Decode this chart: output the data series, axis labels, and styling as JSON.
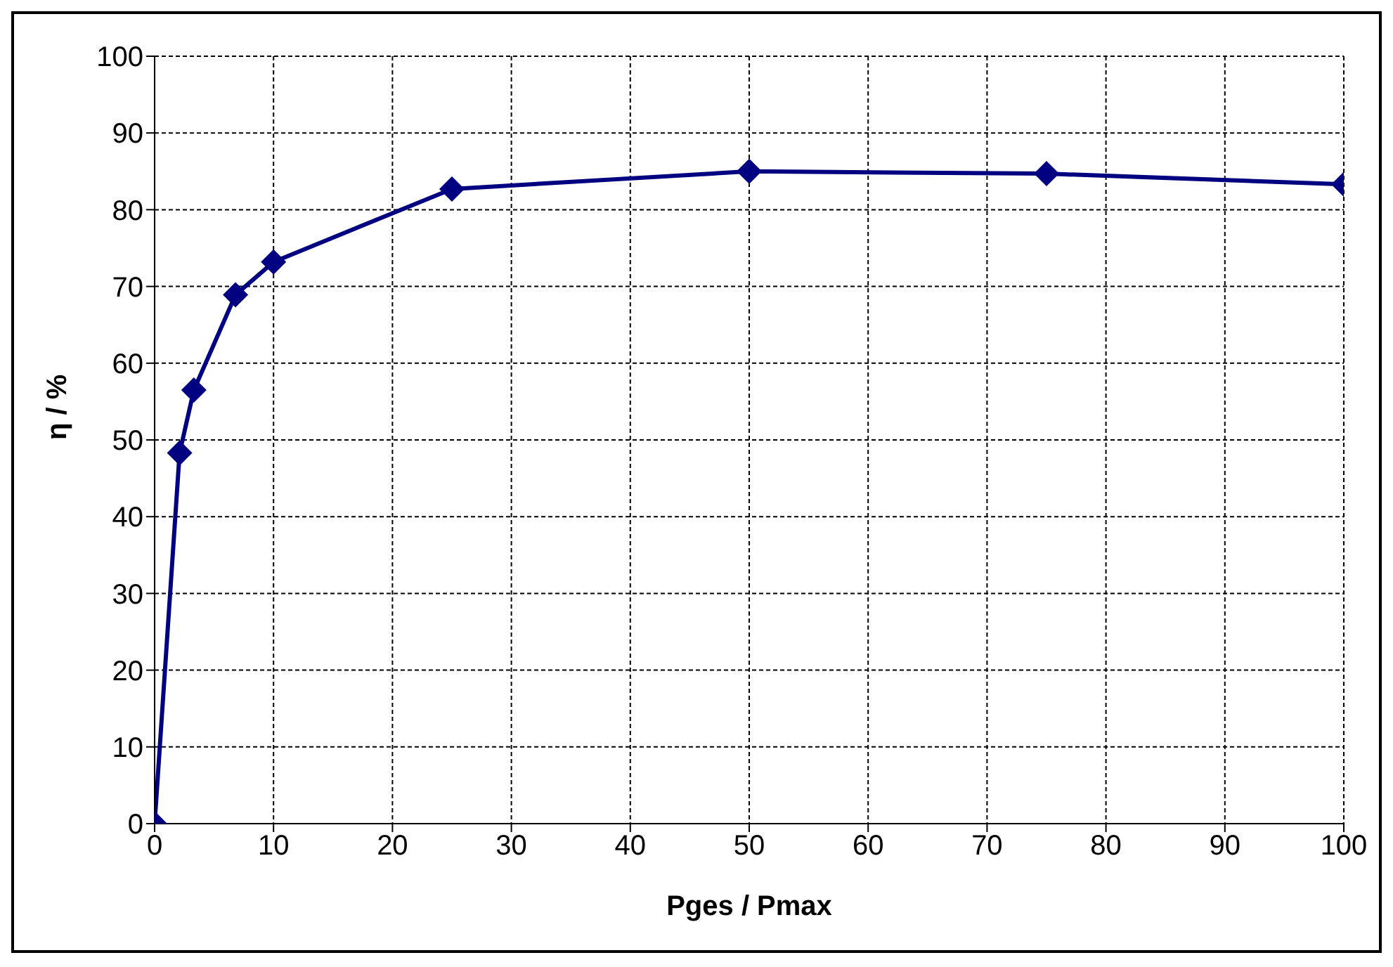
{
  "chart_data": {
    "type": "line",
    "xlabel": "Pges / Pmax",
    "ylabel": "η / %",
    "x": [
      0,
      2.1,
      3.3,
      6.8,
      10,
      25,
      50,
      75,
      100
    ],
    "series": [
      {
        "color": "#000080",
        "values": [
          0,
          48.3,
          56.5,
          68.9,
          73.2,
          82.7,
          85.0,
          84.7,
          83.3
        ]
      }
    ],
    "xlim": [
      0,
      100
    ],
    "xticks": [
      0,
      10,
      20,
      30,
      40,
      50,
      60,
      70,
      80,
      90,
      100
    ],
    "ylim": [
      0,
      100
    ],
    "yticks": [
      0,
      10,
      20,
      30,
      40,
      50,
      60,
      70,
      80,
      90,
      100
    ],
    "grid": true,
    "marker": "diamond",
    "line_style": "solid"
  }
}
